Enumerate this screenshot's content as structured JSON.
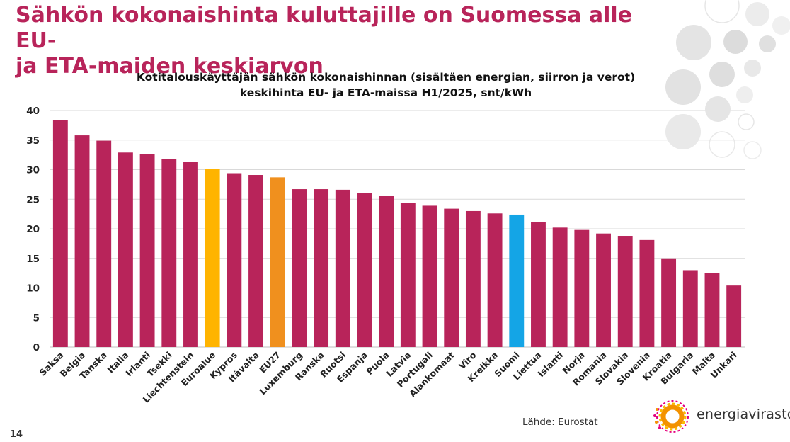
{
  "slide": {
    "title_line1": "Sähkön kokonaishinta kuluttajille on Suomessa alle EU-",
    "title_line2": "ja ETA-maiden keskiarvon",
    "page_number": "14"
  },
  "source": "Lähde: Eurostat",
  "logo": {
    "text": "energiavirasto"
  },
  "colors": {
    "default": "#b8245a",
    "euroalue": "#ffb400",
    "eu27": "#f0901e",
    "suomi": "#14a5e6",
    "grid": "#d9d9d9",
    "title": "#b8245a"
  },
  "chart_data": {
    "type": "bar",
    "title_line1": "Kotitalouskäyttäjän sähkön kokonaishinnan (sisältäen energian, siirron ja verot)",
    "title_line2": "keskihinta EU- ja ETA-maissa H1/2025, snt/kWh",
    "xlabel": "",
    "ylabel": "",
    "ylim": [
      0,
      40
    ],
    "yticks": [
      0,
      5,
      10,
      15,
      20,
      25,
      30,
      35,
      40
    ],
    "grid": true,
    "categories": [
      "Saksa",
      "Belgia",
      "Tanska",
      "Italia",
      "Irlanti",
      "Tsekki",
      "Liechtenstein",
      "Euroalue",
      "Kypros",
      "Itävalta",
      "EU27",
      "Luxemburg",
      "Ranska",
      "Ruotsi",
      "Espanja",
      "Puola",
      "Latvia",
      "Portugali",
      "Alankomaat",
      "Viro",
      "Kreikka",
      "Suomi",
      "Liettua",
      "Islanti",
      "Norja",
      "Romania",
      "Slovakia",
      "Slovenia",
      "Kroatia",
      "Bulgaria",
      "Malta",
      "Unkari"
    ],
    "values": [
      38.4,
      35.8,
      34.9,
      32.9,
      32.6,
      31.8,
      31.3,
      30.1,
      29.4,
      29.1,
      28.7,
      26.7,
      26.7,
      26.6,
      26.1,
      25.6,
      24.4,
      23.9,
      23.4,
      23.0,
      22.6,
      22.4,
      21.1,
      20.2,
      19.8,
      19.2,
      18.8,
      18.1,
      15.0,
      13.0,
      12.5,
      10.4
    ],
    "highlights": {
      "Euroalue": "euroalue",
      "EU27": "eu27",
      "Suomi": "suomi"
    }
  }
}
